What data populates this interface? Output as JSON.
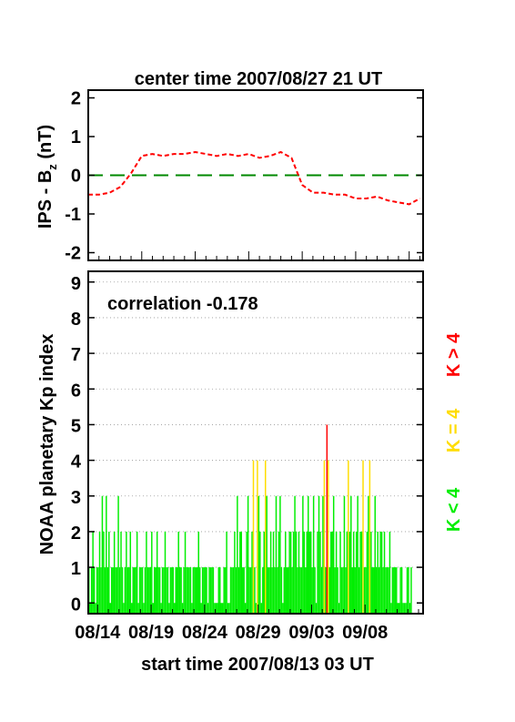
{
  "chart_data": [
    {
      "type": "line",
      "title": "center time 2007/08/27 21 UT",
      "ylabel_main": "IPS - B",
      "ylabel_sub": "z",
      "ylabel_unit": " (nT)",
      "ylim": [
        -2.2,
        2.2
      ],
      "yticks": [
        -2,
        -1,
        0,
        1,
        2
      ],
      "xlim": [
        0,
        31.3
      ],
      "series": [
        {
          "color": "#ff0000",
          "style": "dashed",
          "x": [
            0,
            1,
            2,
            3,
            4,
            5,
            6,
            7,
            8,
            9,
            10,
            11,
            12,
            13,
            14,
            15,
            16,
            17,
            18,
            19,
            20,
            21,
            22,
            23,
            24,
            25,
            26,
            27,
            28,
            29,
            30,
            31
          ],
          "values": [
            -0.5,
            -0.5,
            -0.45,
            -0.3,
            0.05,
            0.5,
            0.55,
            0.5,
            0.55,
            0.55,
            0.6,
            0.55,
            0.5,
            0.55,
            0.5,
            0.55,
            0.45,
            0.5,
            0.6,
            0.45,
            -0.25,
            -0.45,
            -0.45,
            -0.5,
            -0.5,
            -0.6,
            -0.6,
            -0.55,
            -0.65,
            -0.7,
            -0.75,
            -0.6
          ]
        }
      ],
      "reference_line": {
        "y": 0,
        "color": "#008800",
        "style": "dashed"
      }
    },
    {
      "type": "bar",
      "annotation": "correlation -0.178",
      "ylabel": "NOAA planetary Kp index",
      "xlabel": "start time 2007/08/13 03 UT",
      "xticks": [
        "08/14",
        "08/19",
        "08/24",
        "08/29",
        "09/03",
        "09/08"
      ],
      "xtick_days": [
        0.875,
        5.875,
        10.875,
        15.875,
        20.875,
        25.875
      ],
      "yticks": [
        0,
        1,
        2,
        3,
        4,
        5,
        6,
        7,
        8,
        9
      ],
      "ylim": [
        -0.3,
        9.3
      ],
      "xlim": [
        0,
        31.3
      ],
      "grid": true,
      "legend": [
        {
          "label": "K < 4",
          "color": "#00ee00"
        },
        {
          "label": "K = 4",
          "color": "#ffdd00"
        },
        {
          "label": "K > 4",
          "color": "#ff0000"
        }
      ],
      "kp_3hr": [
        1,
        0,
        1,
        2,
        1,
        0,
        1,
        1,
        2,
        1,
        3,
        2,
        1,
        3,
        1,
        2,
        0,
        1,
        1,
        2,
        1,
        1,
        3,
        1,
        2,
        1,
        0,
        1,
        2,
        1,
        1,
        2,
        0,
        1,
        1,
        1,
        2,
        0,
        1,
        1,
        1,
        0,
        1,
        2,
        1,
        1,
        1,
        2,
        0,
        1,
        1,
        2,
        1,
        1,
        0,
        1,
        1,
        2,
        1,
        1,
        0,
        1,
        1,
        1,
        0,
        1,
        1,
        2,
        1,
        1,
        0,
        1,
        2,
        1,
        1,
        1,
        1,
        0,
        1,
        1,
        1,
        1,
        2,
        1,
        0,
        1,
        1,
        1,
        1,
        0,
        1,
        1,
        1,
        1,
        0,
        0,
        0,
        1,
        1,
        0,
        0,
        1,
        1,
        2,
        0,
        0,
        1,
        1,
        1,
        2,
        1,
        3,
        1,
        2,
        2,
        1,
        1,
        0,
        2,
        3,
        1,
        1,
        2,
        4,
        1,
        0,
        4,
        3,
        2,
        0,
        1,
        2,
        4,
        3,
        1,
        1,
        2,
        1,
        2,
        1,
        3,
        1,
        2,
        3,
        1,
        0,
        1,
        2,
        1,
        1,
        2,
        2,
        1,
        2,
        3,
        2,
        1,
        2,
        1,
        1,
        3,
        2,
        1,
        2,
        3,
        2,
        2,
        1,
        3,
        1,
        0,
        2,
        3,
        2,
        1,
        3,
        4,
        1,
        5,
        4,
        1,
        2,
        2,
        3,
        1,
        2,
        1,
        0,
        2,
        1,
        1,
        3,
        1,
        2,
        4,
        2,
        3,
        1,
        2,
        1,
        2,
        3,
        1,
        2,
        2,
        4,
        1,
        1,
        2,
        3,
        4,
        2,
        1,
        1,
        3,
        1,
        2,
        1,
        2,
        2,
        1,
        2,
        1,
        1,
        1,
        2,
        0,
        1,
        1,
        1,
        1,
        0,
        0,
        1,
        1,
        0,
        0,
        0,
        1,
        1,
        0,
        1
      ]
    }
  ]
}
